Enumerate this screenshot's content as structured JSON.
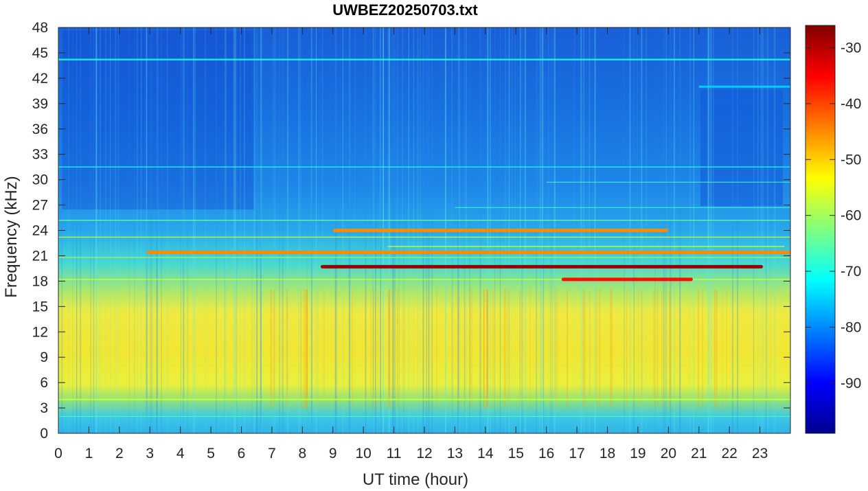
{
  "chart_data": {
    "type": "heatmap",
    "title": "UWBEZ20250703.txt",
    "xlabel": "UT time (hour)",
    "ylabel": "Frequency (kHz)",
    "xlim": [
      0,
      24
    ],
    "ylim": [
      0,
      48
    ],
    "x_ticks": [
      "0",
      "1",
      "2",
      "3",
      "4",
      "5",
      "6",
      "7",
      "8",
      "9",
      "10",
      "11",
      "12",
      "13",
      "14",
      "15",
      "16",
      "17",
      "18",
      "19",
      "20",
      "21",
      "22",
      "23"
    ],
    "y_ticks": [
      "0",
      "3",
      "6",
      "9",
      "12",
      "15",
      "18",
      "21",
      "24",
      "27",
      "30",
      "33",
      "36",
      "39",
      "42",
      "45",
      "48"
    ],
    "colorbar": {
      "range": [
        -99,
        -26
      ],
      "ticks": [
        "-90",
        "-80",
        "-70",
        "-60",
        "-50",
        "-40",
        "-30"
      ],
      "colormap": "jet"
    },
    "features": [
      {
        "description_only": true,
        "freq_khz": 19.7,
        "time_hours": [
          8.6,
          23.1
        ],
        "level_db": -28
      },
      {
        "description_only": true,
        "freq_khz": 18.2,
        "time_hours": [
          16.5,
          20.8
        ],
        "level_db": -36
      },
      {
        "description_only": true,
        "freq_khz": 21.4,
        "time_hours": [
          2.9,
          24.0
        ],
        "level_db": -45
      },
      {
        "description_only": true,
        "freq_khz": 24.0,
        "time_hours": [
          9.0,
          20.0
        ],
        "level_db": -45
      }
    ]
  }
}
